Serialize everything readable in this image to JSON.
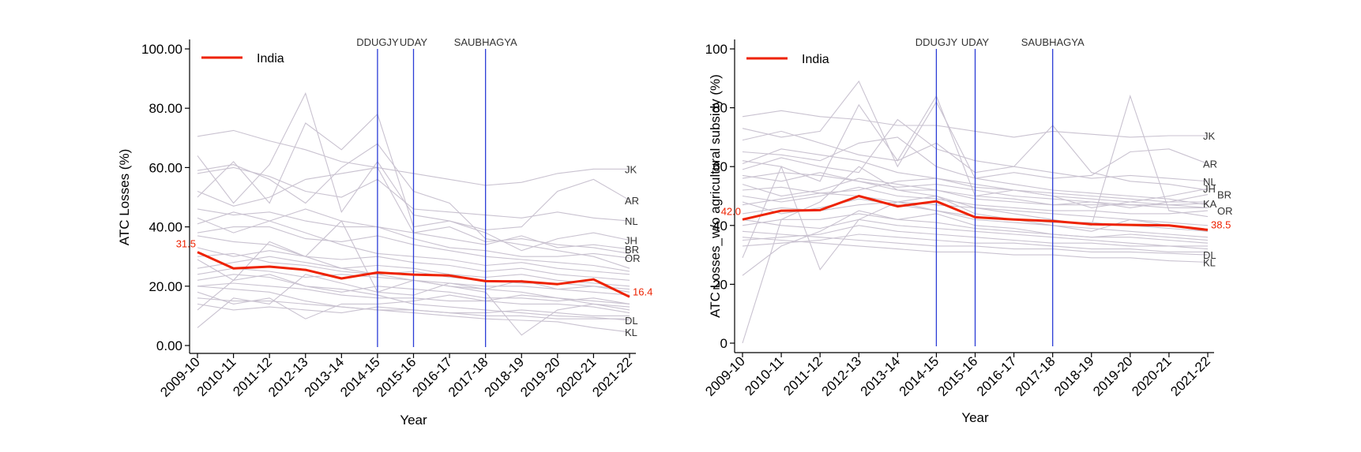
{
  "chart_data": [
    {
      "type": "line",
      "title": "",
      "xlabel": "Year",
      "ylabel": "ATC Losses (%)",
      "ylim": [
        0,
        100
      ],
      "yticks": [
        "0.00",
        "20.00",
        "40.00",
        "60.00",
        "80.00",
        "100.00"
      ],
      "ytick_values": [
        0,
        20,
        40,
        60,
        80,
        100
      ],
      "categories": [
        "2009-10",
        "2010-11",
        "2011-12",
        "2012-13",
        "2013-14",
        "2014-15",
        "2015-16",
        "2016-17",
        "2017-18",
        "2018-19",
        "2019-20",
        "2020-21",
        "2021-22"
      ],
      "legend": {
        "label": "India",
        "position": "top-left"
      },
      "main_series": {
        "name": "India",
        "color": "#ee2200",
        "values": [
          31.5,
          26.0,
          26.6,
          25.5,
          22.6,
          24.6,
          23.9,
          23.6,
          21.7,
          21.6,
          20.7,
          22.3,
          16.4
        ],
        "start_label": "31.5",
        "end_label": "16.4"
      },
      "events": [
        {
          "label": "DDUGJY",
          "category": "2014-15"
        },
        {
          "label": "UDAY",
          "category": "2015-16"
        },
        {
          "label": "SAUBHAGYA",
          "category": "2017-18"
        }
      ],
      "state_labels": [
        {
          "label": "JK",
          "value": 59.5
        },
        {
          "label": "AR",
          "value": 49.0
        },
        {
          "label": "NL",
          "value": 42.0
        },
        {
          "label": "JH",
          "value": 35.5
        },
        {
          "label": "BR",
          "value": 32.5
        },
        {
          "label": "OR",
          "value": 29.5
        },
        {
          "label": "DL",
          "value": 8.5
        },
        {
          "label": "KL",
          "value": 4.5
        }
      ],
      "state_series_values": [
        [
          70.5,
          72.5,
          69.0,
          66.0,
          62.0,
          60.0,
          58.0,
          56.0,
          54.0,
          55.0,
          58.0,
          59.5,
          59.5
        ],
        [
          64.0,
          48.0,
          61.0,
          85.0,
          45.0,
          62.0,
          44.0,
          42.0,
          39.0,
          40.0,
          52.0,
          56.0,
          49.0
        ],
        [
          58.0,
          60.0,
          57.0,
          52.0,
          50.0,
          56.0,
          46.0,
          45.0,
          44.0,
          43.0,
          45.0,
          43.0,
          42.0
        ],
        [
          50.0,
          62.0,
          48.0,
          75.0,
          66.0,
          78.0,
          40.0,
          42.0,
          38.0,
          32.0,
          36.0,
          38.0,
          35.5
        ],
        [
          46.0,
          44.0,
          45.0,
          42.0,
          40.0,
          40.0,
          38.0,
          36.0,
          34.0,
          37.0,
          33.0,
          34.0,
          32.5
        ],
        [
          43.0,
          38.0,
          42.0,
          46.0,
          42.0,
          40.0,
          36.0,
          33.0,
          32.0,
          30.0,
          30.0,
          31.0,
          29.5
        ],
        [
          29.0,
          22.0,
          24.0,
          20.0,
          19.0,
          17.0,
          14.0,
          13.0,
          12.0,
          11.0,
          10.0,
          9.5,
          8.5
        ],
        [
          20.0,
          19.0,
          18.0,
          15.0,
          13.0,
          12.0,
          11.0,
          10.0,
          9.0,
          8.5,
          8.0,
          6.0,
          4.5
        ],
        [
          12.0,
          22.0,
          35.0,
          30.0,
          42.0,
          18.0,
          22.0,
          20.0,
          18.0,
          3.5,
          12.0,
          14.0,
          13.0
        ],
        [
          6.0,
          16.0,
          14.0,
          24.0,
          21.0,
          18.0,
          17.0,
          21.0,
          19.0,
          18.0,
          16.0,
          14.0,
          12.0
        ],
        [
          37.0,
          35.0,
          34.0,
          30.0,
          26.0,
          24.0,
          22.0,
          20.0,
          19.0,
          22.0,
          19.0,
          20.0,
          18.0
        ],
        [
          26.0,
          28.0,
          30.0,
          28.0,
          26.0,
          27.0,
          26.0,
          24.0,
          23.0,
          24.0,
          22.0,
          21.0,
          20.0
        ],
        [
          33.0,
          30.0,
          32.0,
          30.0,
          29.0,
          30.0,
          28.0,
          27.0,
          25.0,
          26.0,
          24.0,
          23.0,
          22.0
        ],
        [
          22.0,
          24.0,
          23.0,
          20.0,
          18.0,
          20.0,
          19.0,
          18.0,
          16.0,
          16.0,
          15.0,
          16.0,
          14.0
        ],
        [
          18.0,
          14.0,
          16.0,
          9.0,
          14.0,
          14.0,
          15.0,
          17.0,
          15.0,
          14.0,
          14.0,
          13.0,
          11.0
        ],
        [
          16.0,
          15.0,
          15.0,
          14.0,
          13.0,
          12.0,
          12.0,
          11.0,
          11.0,
          12.0,
          11.0,
          10.0,
          10.0
        ],
        [
          41.0,
          45.0,
          42.0,
          38.0,
          34.0,
          31.0,
          30.0,
          29.0,
          27.0,
          28.0,
          26.0,
          25.0,
          24.0
        ],
        [
          59.0,
          61.0,
          56.0,
          48.0,
          60.0,
          68.0,
          52.0,
          48.0,
          36.0,
          34.0,
          32.0,
          30.0,
          26.0
        ],
        [
          52.0,
          47.0,
          50.0,
          56.0,
          58.0,
          60.0,
          38.0,
          40.0,
          35.0,
          36.0,
          34.0,
          33.0,
          31.0
        ],
        [
          24.0,
          26.0,
          25.0,
          23.0,
          24.0,
          23.0,
          22.0,
          21.0,
          20.0,
          20.0,
          19.0,
          18.0,
          17.0
        ],
        [
          30.0,
          31.0,
          28.0,
          27.0,
          25.0,
          24.0,
          25.0,
          23.0,
          22.0,
          21.0,
          21.0,
          20.0,
          19.0
        ],
        [
          14.0,
          12.0,
          13.0,
          12.0,
          11.0,
          13.0,
          12.0,
          11.0,
          10.0,
          10.0,
          9.0,
          9.0,
          9.0
        ],
        [
          38.0,
          40.0,
          40.0,
          36.0,
          35.0,
          37.0,
          34.0,
          32.0,
          30.0,
          29.0,
          28.0,
          27.0,
          25.0
        ],
        [
          20.0,
          21.0,
          20.0,
          19.0,
          17.0,
          16.0,
          16.0,
          15.0,
          15.0,
          17.0,
          16.0,
          15.0,
          14.0
        ]
      ]
    },
    {
      "type": "line",
      "title": "",
      "xlabel": "Year",
      "ylabel": "ATC Losses_w/o agricultural subsidy (%)",
      "ylim": [
        0,
        100
      ],
      "yticks": [
        "0",
        "20",
        "40",
        "60",
        "80",
        "100"
      ],
      "ytick_values": [
        0,
        20,
        40,
        60,
        80,
        100
      ],
      "categories": [
        "2009-10",
        "2010-11",
        "2011-12",
        "2012-13",
        "2013-14",
        "2014-15",
        "2015-16",
        "2016-17",
        "2017-18",
        "2018-19",
        "2019-20",
        "2020-21",
        "2021-22"
      ],
      "legend": {
        "label": "India",
        "position": "top-left"
      },
      "main_series": {
        "name": "India",
        "color": "#ee2200",
        "values": [
          42.0,
          45.0,
          45.2,
          50.0,
          46.5,
          48.2,
          42.8,
          42.0,
          41.5,
          40.4,
          40.2,
          40.0,
          38.5
        ],
        "start_label": "42.0",
        "end_label": "38.5"
      },
      "events": [
        {
          "label": "DDUGJY",
          "category": "2014-15"
        },
        {
          "label": "UDAY",
          "category": "2015-16"
        },
        {
          "label": "SAUBHAGYA",
          "category": "2017-18"
        }
      ],
      "state_labels": [
        {
          "label": "JK",
          "value": 70.5
        },
        {
          "label": "AR",
          "value": 61.0
        },
        {
          "label": "NL",
          "value": 55.0
        },
        {
          "label": "JH",
          "value": 52.5
        },
        {
          "label": "BR",
          "value": 50.5
        },
        {
          "label": "KA",
          "value": 47.5
        },
        {
          "label": "OR",
          "value": 45.0
        },
        {
          "label": "DL",
          "value": 30.0
        },
        {
          "label": "KL",
          "value": 27.5
        }
      ],
      "state_series_values": [
        [
          77.0,
          79.0,
          77.0,
          76.0,
          74.0,
          74.0,
          72.0,
          70.0,
          72.0,
          71.0,
          70.0,
          70.5,
          70.5
        ],
        [
          73.0,
          70.0,
          72.0,
          89.0,
          60.0,
          82.0,
          56.0,
          58.0,
          56.0,
          57.0,
          65.0,
          66.0,
          61.0
        ],
        [
          69.0,
          72.0,
          68.0,
          64.0,
          62.0,
          68.0,
          58.0,
          60.0,
          58.0,
          56.0,
          57.0,
          56.0,
          55.0
        ],
        [
          62.0,
          60.0,
          55.0,
          81.0,
          62.0,
          84.0,
          50.0,
          52.0,
          50.0,
          46.0,
          48.0,
          50.0,
          52.5
        ],
        [
          57.0,
          55.0,
          58.0,
          55.0,
          52.0,
          52.0,
          50.0,
          49.0,
          47.0,
          48.0,
          46.0,
          48.0,
          50.5
        ],
        [
          54.0,
          50.0,
          52.0,
          56.0,
          54.0,
          52.0,
          49.0,
          48.0,
          47.0,
          47.0,
          47.0,
          47.0,
          47.5
        ],
        [
          50.0,
          48.0,
          50.0,
          53.0,
          50.0,
          49.0,
          47.0,
          46.0,
          45.0,
          45.0,
          44.0,
          44.0,
          45.0
        ],
        [
          38.0,
          37.0,
          36.0,
          35.0,
          34.0,
          33.0,
          33.0,
          32.0,
          32.0,
          31.0,
          31.0,
          30.5,
          30.0
        ],
        [
          36.0,
          35.0,
          34.0,
          33.0,
          32.0,
          31.0,
          31.0,
          30.0,
          30.0,
          29.0,
          29.0,
          28.0,
          27.5
        ],
        [
          0.0,
          42.0,
          48.0,
          60.0,
          52.0,
          50.0,
          44.0,
          42.0,
          40.0,
          38.0,
          42.0,
          40.0,
          38.0
        ],
        [
          23.0,
          33.0,
          38.0,
          45.0,
          42.0,
          44.0,
          40.0,
          39.0,
          37.0,
          36.0,
          37.0,
          36.0,
          35.0
        ],
        [
          29.0,
          60.0,
          25.0,
          42.0,
          48.0,
          50.0,
          46.0,
          44.0,
          42.0,
          40.0,
          84.0,
          45.0,
          43.0
        ],
        [
          44.0,
          46.0,
          45.0,
          47.0,
          48.0,
          45.0,
          42.0,
          41.0,
          40.0,
          39.0,
          38.0,
          37.0,
          36.0
        ],
        [
          40.0,
          42.0,
          42.0,
          44.0,
          42.0,
          41.0,
          39.0,
          38.0,
          37.0,
          36.0,
          36.0,
          35.0,
          34.0
        ],
        [
          35.0,
          36.0,
          37.0,
          40.0,
          38.0,
          37.0,
          36.0,
          35.0,
          34.0,
          34.0,
          33.0,
          33.0,
          32.0
        ],
        [
          47.0,
          49.0,
          51.0,
          52.0,
          55.0,
          56.0,
          53.0,
          52.0,
          51.0,
          50.0,
          49.0,
          48.0,
          48.0
        ],
        [
          59.0,
          63.0,
          60.0,
          58.0,
          76.0,
          66.0,
          62.0,
          60.0,
          74.0,
          58.0,
          55.0,
          54.0,
          52.0
        ],
        [
          65.0,
          64.0,
          62.0,
          68.0,
          70.0,
          60.0,
          56.0,
          54.0,
          52.0,
          51.0,
          50.0,
          49.0,
          47.0
        ],
        [
          52.0,
          53.0,
          51.0,
          50.0,
          48.0,
          47.0,
          46.0,
          45.0,
          44.0,
          43.0,
          42.0,
          41.0,
          40.0
        ],
        [
          42.0,
          40.0,
          39.0,
          42.0,
          40.0,
          39.0,
          38.0,
          37.0,
          36.0,
          35.0,
          34.0,
          33.0,
          33.0
        ],
        [
          48.0,
          44.0,
          46.0,
          49.0,
          47.0,
          45.0,
          43.0,
          42.0,
          41.0,
          41.0,
          40.0,
          39.0,
          38.0
        ],
        [
          56.0,
          58.0,
          57.0,
          55.0,
          53.0,
          54.0,
          52.0,
          50.0,
          49.0,
          48.0,
          47.0,
          46.0,
          46.0
        ],
        [
          33.0,
          34.0,
          35.0,
          37.0,
          36.0,
          35.0,
          34.0,
          34.0,
          33.0,
          32.0,
          32.0,
          31.0,
          31.0
        ],
        [
          61.0,
          66.0,
          64.0,
          62.0,
          58.0,
          56.0,
          54.0,
          52.0,
          50.0,
          49.0,
          48.0,
          47.0,
          46.0
        ]
      ]
    }
  ],
  "colors": {
    "state_line": "#c9c2d0",
    "event_line": "#2b3cd6",
    "axis": "#000000"
  }
}
